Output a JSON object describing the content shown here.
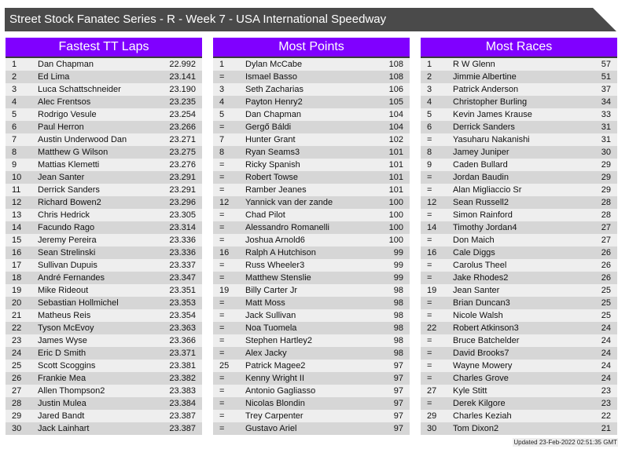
{
  "title": "Street Stock Fanatec Series - R - Week 7 - USA International Speedway",
  "colors": {
    "header_bg": "#8000ff",
    "title_bg": "#4a4a4a",
    "row_light": "#eeeeee",
    "row_dark": "#d6d6d6"
  },
  "panels": [
    {
      "heading": "Fastest TT Laps",
      "rows": [
        [
          "1",
          "Dan Chapman",
          "22.992"
        ],
        [
          "2",
          "Ed Lima",
          "23.141"
        ],
        [
          "3",
          "Luca Schattschneider",
          "23.190"
        ],
        [
          "4",
          "Alec Frentsos",
          "23.235"
        ],
        [
          "5",
          "Rodrigo Vesule",
          "23.254"
        ],
        [
          "6",
          "Paul Herron",
          "23.266"
        ],
        [
          "7",
          "Austin Underwood Dan",
          "23.271"
        ],
        [
          "8",
          "Matthew G Wilson",
          "23.275"
        ],
        [
          "9",
          "Mattias Klemetti",
          "23.276"
        ],
        [
          "10",
          "Jean Santer",
          "23.291"
        ],
        [
          "11",
          "Derrick Sanders",
          "23.291"
        ],
        [
          "12",
          "Richard Bowen2",
          "23.296"
        ],
        [
          "13",
          "Chris Hedrick",
          "23.305"
        ],
        [
          "14",
          "Facundo Rago",
          "23.314"
        ],
        [
          "15",
          "Jeremy Pereira",
          "23.336"
        ],
        [
          "16",
          "Sean Strelinski",
          "23.336"
        ],
        [
          "17",
          "Sullivan Dupuis",
          "23.337"
        ],
        [
          "18",
          "André Fernandes",
          "23.347"
        ],
        [
          "19",
          "Mike Rideout",
          "23.351"
        ],
        [
          "20",
          "Sebastian Hollmichel",
          "23.353"
        ],
        [
          "21",
          "Matheus Reis",
          "23.354"
        ],
        [
          "22",
          "Tyson McEvoy",
          "23.363"
        ],
        [
          "23",
          "James Wyse",
          "23.366"
        ],
        [
          "24",
          "Eric D Smith",
          "23.371"
        ],
        [
          "25",
          "Scott Scoggins",
          "23.381"
        ],
        [
          "26",
          "Frankie Mea",
          "23.382"
        ],
        [
          "27",
          "Allen Thompson2",
          "23.383"
        ],
        [
          "28",
          "Justin Mulea",
          "23.384"
        ],
        [
          "29",
          "Jared Bandt",
          "23.387"
        ],
        [
          "30",
          "Jack Lainhart",
          "23.387"
        ]
      ]
    },
    {
      "heading": "Most Points",
      "rows": [
        [
          "1",
          "Dylan McCabe",
          "108"
        ],
        [
          "=",
          "Ismael Basso",
          "108"
        ],
        [
          "3",
          "Seth Zacharias",
          "106"
        ],
        [
          "4",
          "Payton Henry2",
          "105"
        ],
        [
          "5",
          "Dan Chapman",
          "104"
        ],
        [
          "=",
          "Gergő Báldi",
          "104"
        ],
        [
          "7",
          "Hunter Grant",
          "102"
        ],
        [
          "8",
          "Ryan Seams3",
          "101"
        ],
        [
          "=",
          "Ricky Spanish",
          "101"
        ],
        [
          "=",
          "Robert Towse",
          "101"
        ],
        [
          "=",
          "Ramber Jeanes",
          "101"
        ],
        [
          "12",
          "Yannick van der zande",
          "100"
        ],
        [
          "=",
          "Chad Pilot",
          "100"
        ],
        [
          "=",
          "Alessandro Romanelli",
          "100"
        ],
        [
          "=",
          "Joshua Arnold6",
          "100"
        ],
        [
          "16",
          "Ralph A Hutchison",
          "99"
        ],
        [
          "=",
          "Russ Wheeler3",
          "99"
        ],
        [
          "=",
          "Matthew Stenslie",
          "99"
        ],
        [
          "19",
          "Billy Carter Jr",
          "98"
        ],
        [
          "=",
          "Matt Moss",
          "98"
        ],
        [
          "=",
          "Jack Sullivan",
          "98"
        ],
        [
          "=",
          "Noa Tuomela",
          "98"
        ],
        [
          "=",
          "Stephen Hartley2",
          "98"
        ],
        [
          "=",
          "Alex Jacky",
          "98"
        ],
        [
          "25",
          "Patrick Magee2",
          "97"
        ],
        [
          "=",
          "Kenny Wright II",
          "97"
        ],
        [
          "=",
          "Antonio Gagliasso",
          "97"
        ],
        [
          "=",
          "Nicolas Blondin",
          "97"
        ],
        [
          "=",
          "Trey Carpenter",
          "97"
        ],
        [
          "=",
          "Gustavo Ariel",
          "97"
        ]
      ]
    },
    {
      "heading": "Most Races",
      "rows": [
        [
          "1",
          "R W Glenn",
          "57"
        ],
        [
          "2",
          "Jimmie Albertine",
          "51"
        ],
        [
          "3",
          "Patrick Anderson",
          "37"
        ],
        [
          "4",
          "Christopher Burling",
          "34"
        ],
        [
          "5",
          "Kevin James Krause",
          "33"
        ],
        [
          "6",
          "Derrick Sanders",
          "31"
        ],
        [
          "=",
          "Yasuharu Nakanishi",
          "31"
        ],
        [
          "8",
          "Jamey Juniper",
          "30"
        ],
        [
          "9",
          "Caden Bullard",
          "29"
        ],
        [
          "=",
          "Jordan Baudin",
          "29"
        ],
        [
          "=",
          "Alan Migliaccio Sr",
          "29"
        ],
        [
          "12",
          "Sean Russell2",
          "28"
        ],
        [
          "=",
          "Simon Rainford",
          "28"
        ],
        [
          "14",
          "Timothy Jordan4",
          "27"
        ],
        [
          "=",
          "Don Maich",
          "27"
        ],
        [
          "16",
          "Cale Diggs",
          "26"
        ],
        [
          "=",
          "Carolus Theel",
          "26"
        ],
        [
          "=",
          "Jake Rhodes2",
          "26"
        ],
        [
          "19",
          "Jean Santer",
          "25"
        ],
        [
          "=",
          "Brian Duncan3",
          "25"
        ],
        [
          "=",
          "Nicole Walsh",
          "25"
        ],
        [
          "22",
          "Robert Atkinson3",
          "24"
        ],
        [
          "=",
          "Bruce Batchelder",
          "24"
        ],
        [
          "=",
          "David Brooks7",
          "24"
        ],
        [
          "=",
          "Wayne Mowery",
          "24"
        ],
        [
          "=",
          "Charles Grove",
          "24"
        ],
        [
          "27",
          "Kyle Stitt",
          "23"
        ],
        [
          "=",
          "Derek Kilgore",
          "23"
        ],
        [
          "29",
          "Charles Keziah",
          "22"
        ],
        [
          "30",
          "Tom Dixon2",
          "21"
        ]
      ]
    }
  ],
  "footer": "Updated 23-Feb-2022 02:51:35 GMT"
}
